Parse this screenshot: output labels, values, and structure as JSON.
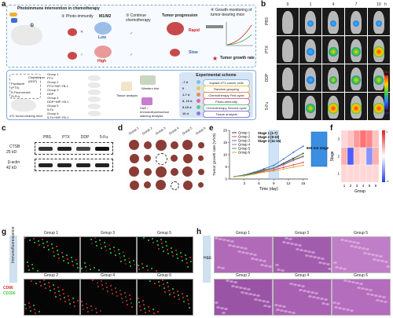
{
  "panel_letters": [
    "a",
    "b",
    "c",
    "d",
    "e",
    "f",
    "g",
    "h"
  ],
  "panel_a": {
    "title": "Photoimmune intervention in chemotherapy",
    "step1": "①",
    "step2": "② Photo-immunity",
    "m1m2": "M1/M2",
    "low": "Low",
    "high": "High",
    "step3": "③ Continue chemotherapy",
    "tumor_progression": "Tumor progression",
    "rapid": "Rapid",
    "slow": "Slow",
    "step4": "④ Growth monitoring of tumor-bearing mice",
    "tumor_growth_rate": "Tumor growth rate",
    "drugs": [
      "Cisplatinum (DDP)",
      "Paclitaxel (PTX)",
      "5-Fluorouracil (5-Fu)"
    ],
    "mice_label": "4T1 tumor-bearing mice",
    "groups": [
      "Group 1",
      "Group 2",
      "Group 3",
      "Group 4",
      "Group 5",
      "Group 6"
    ],
    "group_treatments": [
      "PTX",
      "PTX+NIP-YB-1",
      "DDP",
      "DDP+NIP-YB-1",
      "5-Fu",
      "5-Fu+NIP-YB-1"
    ],
    "western_blot": "Western blot",
    "tissue_analysis": "Tissue analysis",
    "he_label": "H&E / Immunofluorescence staining analysis",
    "scheme_title": "Experimental scheme",
    "scheme_steps": [
      {
        "day": "-7 d",
        "text": "Implant 4T1 cancer cells",
        "color": "#7fbde8"
      },
      {
        "day": "0",
        "text": "Random grouping",
        "color": "#e8c84a"
      },
      {
        "day": "1-7 d",
        "text": "Chemotherapy First cycle",
        "color": "#e88a5a"
      },
      {
        "day": "8, 10 d",
        "text": "Photo-immunity",
        "color": "#e06a9a"
      },
      {
        "day": "8-15 d",
        "text": "Chemotherapy Second cycle",
        "color": "#6ac28a"
      },
      {
        "day": "16 d",
        "text": "Tissue analysis",
        "color": "#8a7ad8"
      }
    ]
  },
  "panel_b": {
    "time_label": "h",
    "timepoints": [
      "0",
      "1",
      "4",
      "7",
      "10"
    ],
    "rows": [
      "PBS",
      "PTX",
      "DDP",
      "5-Fu"
    ],
    "colorbar_max": "Max",
    "colorbar_min": "Min"
  },
  "panel_c": {
    "columns": [
      "PBS",
      "PTX",
      "DDP",
      "5-Fu"
    ],
    "bands": [
      {
        "name": "CTSB",
        "size": "25 kD"
      },
      {
        "name": "β-actin",
        "size": "42 kD"
      }
    ]
  },
  "panel_d": {
    "groups": [
      "Group 1",
      "Group 2",
      "Group 3",
      "Group 4",
      "Group 5",
      "Group 6"
    ]
  },
  "panel_e": {
    "chart_data": {
      "type": "line",
      "ylabel": "Tumor growth rate (V/V0)",
      "xlabel": "Time (day)",
      "x": [
        1,
        3,
        5,
        7,
        9,
        11,
        13,
        15
      ],
      "ylim": [
        0,
        20
      ],
      "yticks": [
        0,
        5,
        10,
        15,
        20
      ],
      "xticks": [
        3,
        6,
        9,
        12,
        15
      ],
      "series": [
        {
          "name": "Group 1",
          "color": "#2a2a2a",
          "values": [
            1,
            1.6,
            2.5,
            3.8,
            4.5,
            6.5,
            8.5,
            10.5
          ]
        },
        {
          "name": "Group 2",
          "color": "#e03030",
          "values": [
            1,
            1.4,
            2.2,
            3.2,
            3.8,
            4.8,
            5.8,
            6.8
          ]
        },
        {
          "name": "Group 3",
          "color": "#3060d0",
          "values": [
            1,
            1.7,
            2.8,
            4.2,
            5.6,
            8.2,
            11,
            13.5
          ]
        },
        {
          "name": "Group 4",
          "color": "#d040c0",
          "values": [
            1,
            1.5,
            2.3,
            3.6,
            4.4,
            5.8,
            7.6,
            9.2
          ]
        },
        {
          "name": "Group 5",
          "color": "#30a040",
          "values": [
            1,
            1.5,
            2.4,
            3.6,
            4.6,
            6.2,
            8.0,
            9.4
          ]
        },
        {
          "name": "Group 6",
          "color": "#e0a020",
          "values": [
            1,
            1.3,
            2.0,
            2.8,
            3.3,
            4.1,
            4.9,
            5.6
          ]
        }
      ],
      "annotations": [
        "Stage 1 (1-7)",
        "Stage 2 (8-10)",
        "Stage 3 (11-15)"
      ],
      "side_box": "660 nm stage 2"
    }
  },
  "panel_f": {
    "ylabel": "Stage",
    "xlabel": "Group",
    "y_ticks": [
      "3",
      "2",
      "1"
    ],
    "x_ticks": [
      "1",
      "2",
      "3",
      "4",
      "5",
      "6"
    ],
    "colorbar_ticks": [
      "1",
      "-1"
    ],
    "chart_data": {
      "type": "heatmap",
      "rows": [
        "3",
        "2",
        "1"
      ],
      "cols": [
        "1",
        "2",
        "3",
        "4",
        "5",
        "6"
      ],
      "values": [
        [
          0.2,
          0.3,
          0.5,
          0.7,
          0.6,
          0.3
        ],
        [
          0.4,
          -0.9,
          0.3,
          0.2,
          -0.6,
          0.4
        ],
        [
          0.2,
          0.2,
          0.2,
          0.2,
          0.2,
          0.2
        ]
      ]
    }
  },
  "panel_g": {
    "side_label": "Immunofluorescence",
    "legend": [
      {
        "text": "CD86",
        "color": "#e03030"
      },
      {
        "text": "CD206",
        "color": "#40d040"
      }
    ],
    "tiles": [
      "Group 1",
      "Group 3",
      "Group 5",
      "Group 2",
      "Group 4",
      "Group 6"
    ]
  },
  "panel_h": {
    "side_label": "H&E",
    "tiles": [
      "Group 1",
      "Group 3",
      "Group 5",
      "Group 2",
      "Group 4",
      "Group 6"
    ]
  }
}
